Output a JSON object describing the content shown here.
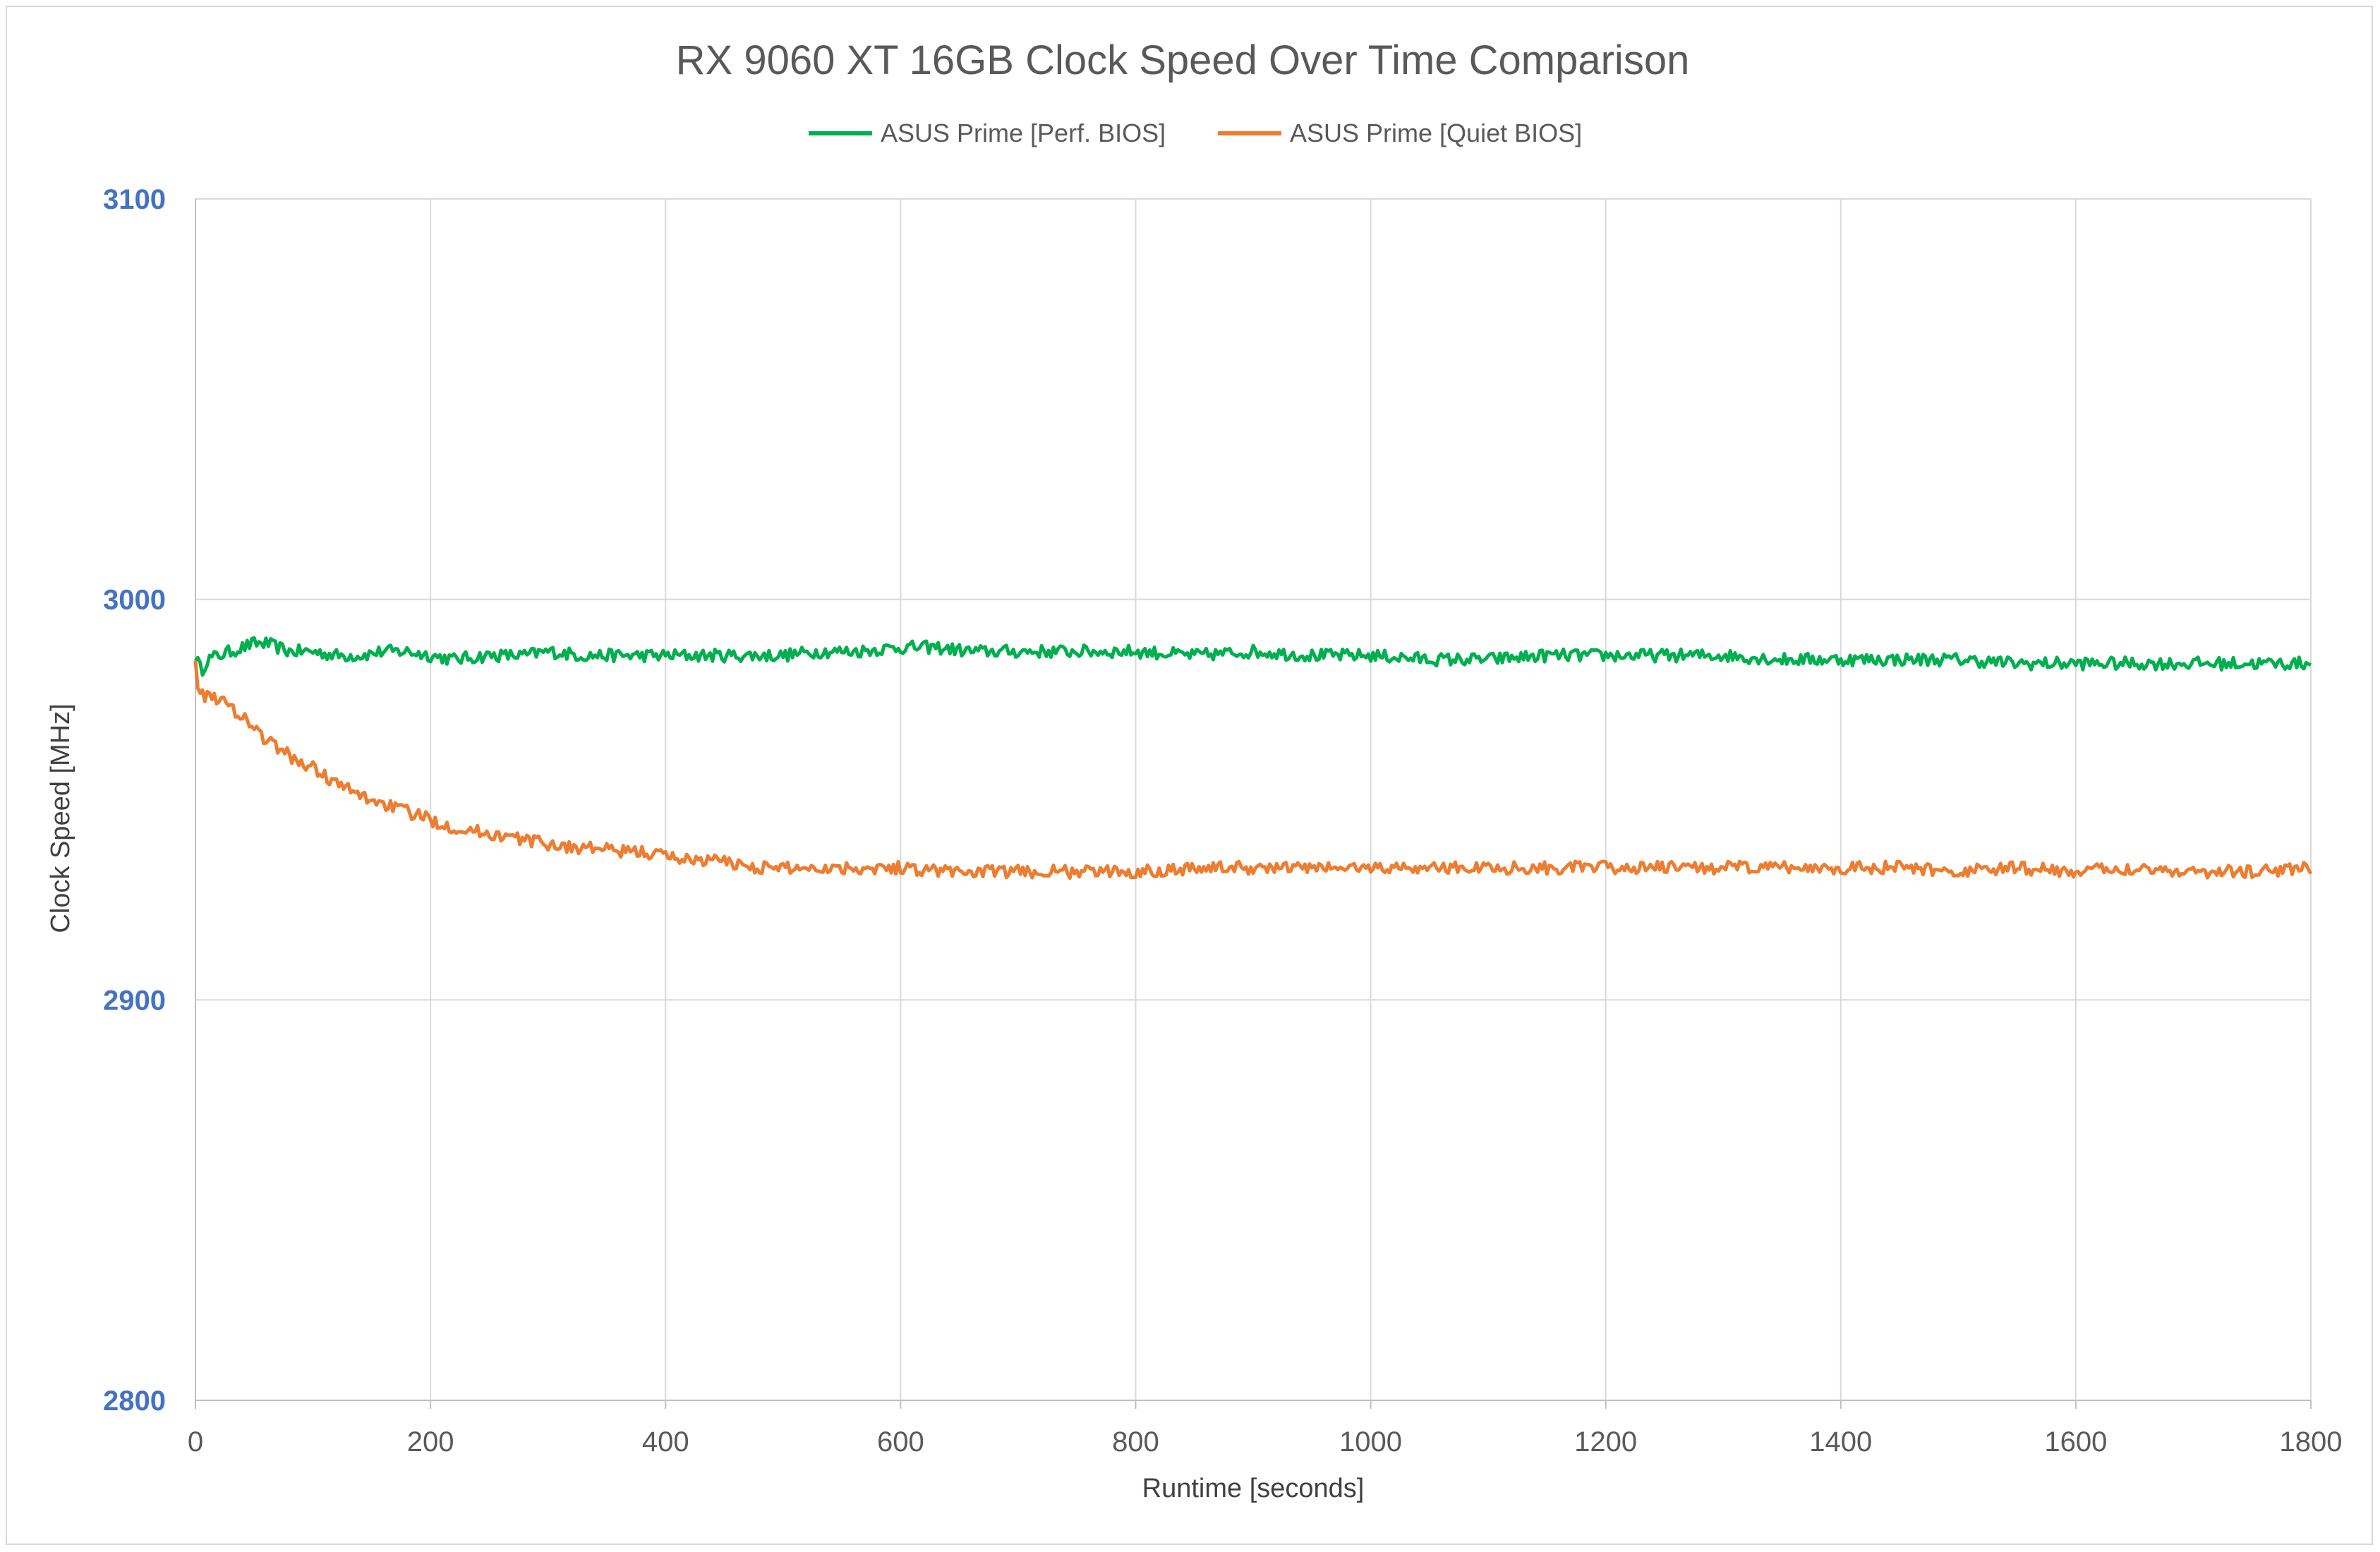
{
  "chart_data": {
    "type": "line",
    "title": "RX 9060 XT 16GB Clock Speed Over Time Comparison",
    "xlabel": "Runtime [seconds]",
    "ylabel": "Clock Speed [MHz]",
    "xlim": [
      0,
      1800
    ],
    "ylim": [
      2800,
      3100
    ],
    "x_ticks": [
      "0",
      "200",
      "400",
      "600",
      "800",
      "1000",
      "1200",
      "1400",
      "1600",
      "1800"
    ],
    "y_ticks": [
      "3100",
      "3000",
      "2900",
      "2800"
    ],
    "x_tick_values": [
      0,
      200,
      400,
      600,
      800,
      1000,
      1200,
      1400,
      1600,
      1800
    ],
    "y_tick_values": [
      3100,
      3000,
      2900,
      2800
    ],
    "grid": true,
    "legend_position": "top-center",
    "series": [
      {
        "name": "ASUS Prime [Perf. BIOS]",
        "color": "#00b050",
        "x": [
          0,
          5,
          10,
          20,
          30,
          40,
          50,
          60,
          70,
          80,
          100,
          120,
          140,
          160,
          180,
          200,
          220,
          250,
          280,
          300,
          330,
          360,
          400,
          430,
          460,
          500,
          530,
          560,
          600,
          630,
          660,
          700,
          750,
          800,
          850,
          900,
          950,
          1000,
          1050,
          1100,
          1150,
          1200,
          1250,
          1300,
          1350,
          1400,
          1450,
          1500,
          1550,
          1600,
          1650,
          1700,
          1750,
          1800
        ],
        "values": [
          2986,
          2982,
          2985,
          2986,
          2987,
          2988,
          2989,
          2989,
          2988,
          2987,
          2987,
          2986,
          2986,
          2987,
          2987,
          2986,
          2985,
          2986,
          2986,
          2987,
          2986,
          2986,
          2986,
          2986,
          2986,
          2986,
          2987,
          2987,
          2988,
          2988,
          2987,
          2987,
          2987,
          2987,
          2986,
          2987,
          2986,
          2986,
          2985,
          2985,
          2986,
          2986,
          2986,
          2986,
          2985,
          2985,
          2985,
          2985,
          2984,
          2984,
          2984,
          2984,
          2984,
          2984
        ]
      },
      {
        "name": "ASUS Prime [Quiet BIOS]",
        "color": "#ed7d31",
        "x": [
          0,
          3,
          5,
          8,
          10,
          15,
          20,
          30,
          40,
          50,
          60,
          70,
          80,
          90,
          100,
          120,
          140,
          160,
          180,
          200,
          220,
          240,
          260,
          280,
          300,
          320,
          340,
          360,
          380,
          400,
          420,
          440,
          460,
          480,
          500,
          550,
          600,
          650,
          700,
          750,
          800,
          850,
          900,
          950,
          1000,
          1050,
          1100,
          1150,
          1200,
          1250,
          1300,
          1350,
          1400,
          1450,
          1500,
          1550,
          1600,
          1650,
          1700,
          1750,
          1800
        ],
        "values": [
          2986,
          2976,
          2980,
          2973,
          2978,
          2976,
          2975,
          2973,
          2971,
          2968,
          2965,
          2963,
          2961,
          2959,
          2958,
          2954,
          2951,
          2949,
          2947,
          2945,
          2943,
          2942,
          2941,
          2940,
          2939,
          2938,
          2938,
          2937,
          2937,
          2936,
          2935,
          2935,
          2934,
          2933,
          2933,
          2933,
          2933,
          2932,
          2932,
          2932,
          2932,
          2933,
          2933,
          2933,
          2933,
          2933,
          2933,
          2933,
          2933,
          2933,
          2933,
          2933,
          2933,
          2933,
          2932,
          2933,
          2932,
          2933,
          2932,
          2932,
          2933
        ]
      }
    ]
  }
}
